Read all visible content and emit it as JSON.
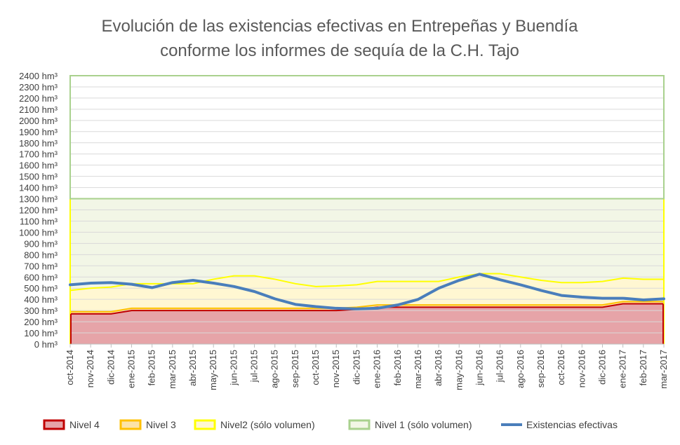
{
  "chart_data": {
    "type": "area",
    "title": "Evolución de las existencias efectivas en Entrepeñas y Buendía",
    "subtitle": "conforme los informes de sequía de la C.H. Tajo",
    "unit_suffix": " hm³",
    "ylim": [
      0,
      2400
    ],
    "ytick_step": 100,
    "grid": true,
    "legend_position": "bottom",
    "x": [
      "oct-2014",
      "nov-2014",
      "dic-2014",
      "ene-2015",
      "feb-2015",
      "mar-2015",
      "abr-2015",
      "may-2015",
      "jun-2015",
      "jul-2015",
      "ago-2015",
      "sep-2015",
      "oct-2015",
      "nov-2015",
      "dic-2015",
      "ene-2016",
      "feb-2016",
      "mar-2016",
      "abr-2016",
      "may-2016",
      "jun-2016",
      "jul-2016",
      "ago-2016",
      "sep-2016",
      "oct-2016",
      "nov-2016",
      "dic-2016",
      "ene-2017",
      "feb-2017",
      "mar-2017"
    ],
    "series": [
      {
        "name": "Nivel 4",
        "kind": "area",
        "fill": "#E6A4A8",
        "stroke": "#C00000",
        "values": [
          270,
          270,
          270,
          300,
          300,
          300,
          300,
          300,
          300,
          300,
          300,
          300,
          300,
          300,
          310,
          330,
          330,
          330,
          330,
          330,
          330,
          330,
          330,
          330,
          330,
          330,
          330,
          360,
          360,
          360
        ]
      },
      {
        "name": "Nivel 3",
        "kind": "area",
        "fill": "#FCE3A8",
        "stroke": "#FFC000",
        "values": [
          290,
          290,
          290,
          320,
          320,
          320,
          320,
          320,
          320,
          320,
          320,
          320,
          320,
          320,
          330,
          350,
          350,
          350,
          350,
          350,
          350,
          350,
          350,
          350,
          350,
          350,
          350,
          380,
          380,
          380
        ]
      },
      {
        "name": "Nivel2 (sólo volumen)",
        "kind": "area",
        "fill": "#FFF7D2",
        "stroke": "#FFFF00",
        "values": [
          480,
          500,
          510,
          540,
          540,
          540,
          540,
          580,
          610,
          610,
          580,
          540,
          515,
          520,
          530,
          560,
          560,
          560,
          560,
          600,
          630,
          630,
          600,
          570,
          550,
          550,
          560,
          590,
          580,
          580
        ]
      },
      {
        "name": "Nivel 1 (sólo volumen)",
        "kind": "area",
        "fill": "#F2F6E6",
        "stroke": "#A9D18E",
        "values": [
          1300,
          1300,
          1300,
          1300,
          1300,
          1300,
          1300,
          1300,
          1300,
          1300,
          1300,
          1300,
          1300,
          1300,
          1300,
          1300,
          1300,
          1300,
          1300,
          1300,
          1300,
          1300,
          1300,
          1300,
          1300,
          1300,
          1300,
          1300,
          1300,
          1300
        ]
      },
      {
        "name": "Existencias efectivas",
        "kind": "line",
        "stroke": "#4A7EBB",
        "values": [
          530,
          545,
          550,
          535,
          505,
          550,
          570,
          545,
          515,
          470,
          405,
          355,
          335,
          320,
          315,
          320,
          350,
          400,
          500,
          570,
          625,
          575,
          530,
          480,
          435,
          420,
          410,
          410,
          395,
          405
        ]
      }
    ]
  }
}
